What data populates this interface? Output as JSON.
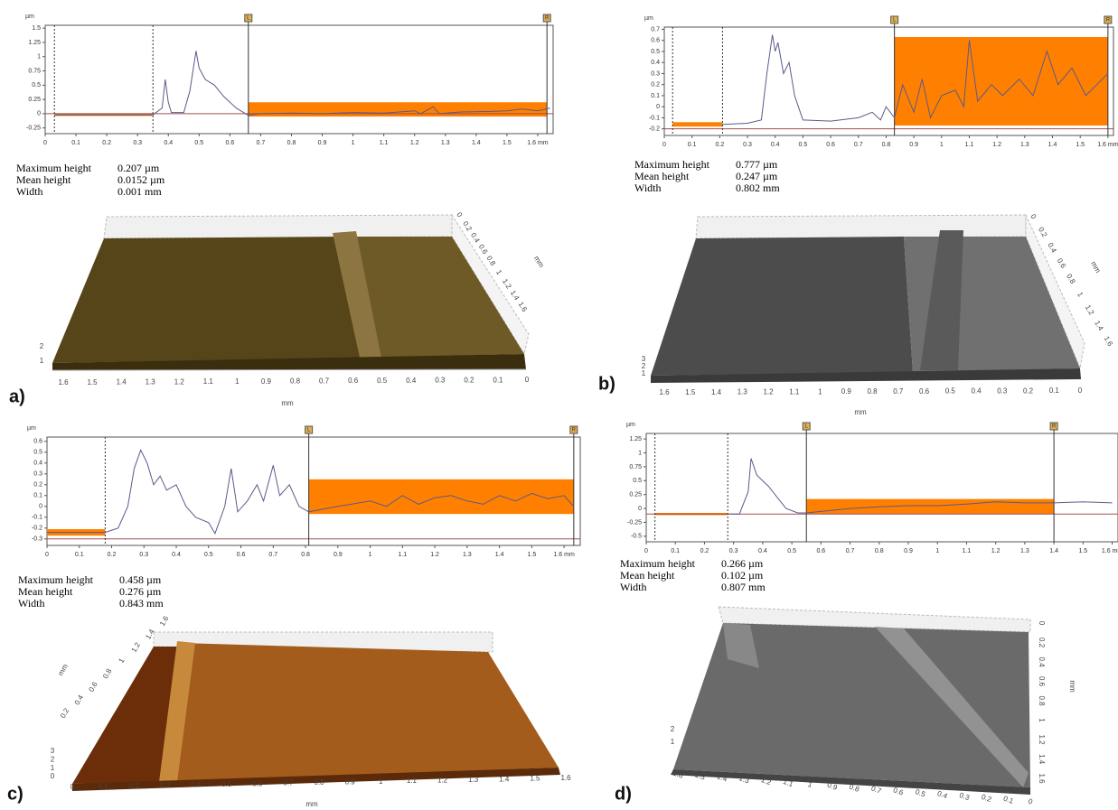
{
  "chart_data": [
    {
      "type": "line",
      "y_label": "µm",
      "x": [
        0.03,
        0.35,
        0.38,
        0.39,
        0.4,
        0.41,
        0.45,
        0.47,
        0.49,
        0.5,
        0.52,
        0.55,
        0.58,
        0.62,
        0.66,
        0.7,
        0.8,
        0.9,
        1.0,
        1.1,
        1.15,
        1.2,
        1.22,
        1.26,
        1.28,
        1.35,
        1.45,
        1.5,
        1.55,
        1.6,
        1.64
      ],
      "series": [
        {
          "color": "#5a5a8c",
          "values": [
            -0.02,
            -0.02,
            0.1,
            0.6,
            0.2,
            0.02,
            0.02,
            0.4,
            1.1,
            0.8,
            0.6,
            0.5,
            0.3,
            0.1,
            -0.03,
            0.0,
            0.01,
            0.0,
            0.02,
            0.01,
            0.03,
            0.05,
            0.0,
            0.12,
            0.0,
            0.03,
            0.04,
            0.05,
            0.08,
            0.05,
            0.1
          ]
        }
      ],
      "xlim": [
        0,
        1.65
      ],
      "ylim": [
        -0.35,
        1.55
      ],
      "xticks": [
        0,
        0.1,
        0.2,
        0.3,
        0.4,
        0.5,
        0.6,
        0.7,
        0.8,
        0.9,
        1,
        1.1,
        1.2,
        1.3,
        1.4,
        1.5,
        {
          "value": 1.6,
          "label": "1.6 mm"
        }
      ],
      "yticks": [
        1.5,
        1.25,
        1,
        0.75,
        0.5,
        0.25,
        0,
        -0.25
      ],
      "highlights": [
        {
          "x": [
            0.03,
            0.35
          ],
          "y": [
            -0.04,
            0.0
          ]
        },
        {
          "x": [
            0.66,
            1.63
          ],
          "y": [
            -0.05,
            0.2
          ]
        }
      ],
      "highlight_color": "#ff8000",
      "dashed_x": [
        0.03,
        0.35
      ],
      "cursors": [
        {
          "value": 0.66,
          "label": "L"
        },
        {
          "value": 1.63,
          "label": "R"
        }
      ],
      "reference_y": 0,
      "reference_color": "#a05050"
    },
    {
      "type": "line",
      "y_label": "µm",
      "x": [
        0.21,
        0.3,
        0.35,
        0.37,
        0.39,
        0.4,
        0.41,
        0.43,
        0.45,
        0.47,
        0.5,
        0.6,
        0.7,
        0.75,
        0.78,
        0.8,
        0.83,
        0.86,
        0.9,
        0.93,
        0.96,
        1.0,
        1.05,
        1.08,
        1.1,
        1.13,
        1.18,
        1.22,
        1.28,
        1.33,
        1.38,
        1.42,
        1.47,
        1.52,
        1.56,
        1.6
      ],
      "series": [
        {
          "color": "#5a5a8c",
          "values": [
            -0.16,
            -0.15,
            -0.12,
            0.3,
            0.65,
            0.5,
            0.58,
            0.3,
            0.4,
            0.1,
            -0.12,
            -0.13,
            -0.1,
            -0.05,
            -0.12,
            0.0,
            -0.1,
            0.2,
            -0.05,
            0.25,
            -0.1,
            0.1,
            0.15,
            0.0,
            0.6,
            0.05,
            0.2,
            0.1,
            0.25,
            0.1,
            0.5,
            0.2,
            0.35,
            0.1,
            0.2,
            0.3
          ]
        }
      ],
      "xlim": [
        0,
        1.62
      ],
      "ylim": [
        -0.26,
        0.72
      ],
      "xticks": [
        0,
        0.1,
        0.2,
        0.3,
        0.4,
        0.5,
        0.6,
        0.7,
        0.8,
        0.9,
        1,
        1.1,
        1.2,
        1.3,
        1.4,
        1.5,
        {
          "value": 1.6,
          "label": "1.6 mm"
        }
      ],
      "yticks": [
        0.7,
        0.6,
        0.5,
        0.4,
        0.3,
        0.2,
        0.1,
        0,
        -0.1,
        -0.2
      ],
      "highlights": [
        {
          "x": [
            0.03,
            0.21
          ],
          "y": [
            -0.18,
            -0.14
          ]
        },
        {
          "x": [
            0.83,
            1.6
          ],
          "y": [
            -0.17,
            0.63
          ]
        }
      ],
      "highlight_color": "#ff8000",
      "dashed_x": [
        0.03,
        0.21
      ],
      "cursors": [
        {
          "value": 0.83,
          "label": "L"
        },
        {
          "value": 1.6,
          "label": "R"
        }
      ],
      "reference_y": -0.2,
      "reference_color": "#a05050"
    },
    {
      "type": "line",
      "y_label": "µm",
      "x": [
        0,
        0.18,
        0.22,
        0.25,
        0.27,
        0.29,
        0.31,
        0.33,
        0.35,
        0.37,
        0.4,
        0.43,
        0.46,
        0.5,
        0.52,
        0.55,
        0.57,
        0.59,
        0.62,
        0.65,
        0.67,
        0.7,
        0.72,
        0.75,
        0.78,
        0.81,
        0.9,
        1.0,
        1.05,
        1.1,
        1.15,
        1.2,
        1.25,
        1.3,
        1.35,
        1.4,
        1.45,
        1.5,
        1.55,
        1.6,
        1.63
      ],
      "series": [
        {
          "color": "#5a5a8c",
          "values": [
            -0.24,
            -0.24,
            -0.2,
            0.0,
            0.35,
            0.52,
            0.4,
            0.2,
            0.28,
            0.15,
            0.2,
            0.0,
            -0.1,
            -0.15,
            -0.25,
            0.0,
            0.35,
            -0.05,
            0.05,
            0.2,
            0.05,
            0.38,
            0.1,
            0.2,
            0.0,
            -0.05,
            0.0,
            0.05,
            0.0,
            0.1,
            0.02,
            0.08,
            0.1,
            0.05,
            0.02,
            0.1,
            0.05,
            0.12,
            0.07,
            0.1,
            0.0
          ]
        }
      ],
      "xlim": [
        0,
        1.65
      ],
      "ylim": [
        -0.36,
        0.64
      ],
      "xticks": [
        0,
        0.1,
        0.2,
        0.3,
        0.4,
        0.5,
        0.6,
        0.7,
        0.8,
        0.9,
        1,
        1.1,
        1.2,
        1.3,
        1.4,
        1.5,
        {
          "value": 1.6,
          "label": "1.6 mm"
        }
      ],
      "yticks": [
        0.6,
        0.5,
        0.4,
        0.3,
        0.2,
        0.1,
        0,
        -0.1,
        -0.2,
        -0.3
      ],
      "highlights": [
        {
          "x": [
            0,
            0.18
          ],
          "y": [
            -0.27,
            -0.21
          ]
        },
        {
          "x": [
            0.81,
            1.63
          ],
          "y": [
            -0.07,
            0.25
          ]
        }
      ],
      "highlight_color": "#ff8000",
      "dashed_x": [
        0.18
      ],
      "cursors": [
        {
          "value": 0.81,
          "label": "L"
        },
        {
          "value": 1.63,
          "label": "R"
        }
      ],
      "reference_y": -0.3,
      "reference_color": "#a05050"
    },
    {
      "type": "line",
      "y_label": "µm",
      "x": [
        0.28,
        0.32,
        0.35,
        0.36,
        0.38,
        0.42,
        0.45,
        0.48,
        0.52,
        0.55,
        0.7,
        0.8,
        0.9,
        1.0,
        1.1,
        1.2,
        1.3,
        1.4,
        1.5,
        1.6
      ],
      "series": [
        {
          "color": "#5a5a8c",
          "values": [
            -0.1,
            -0.1,
            0.3,
            0.9,
            0.6,
            0.4,
            0.2,
            0.0,
            -0.08,
            -0.08,
            0.0,
            0.03,
            0.05,
            0.05,
            0.08,
            0.12,
            0.1,
            0.1,
            0.12,
            0.1
          ]
        }
      ],
      "xlim": [
        0,
        1.62
      ],
      "ylim": [
        -0.6,
        1.35
      ],
      "xticks": [
        0,
        0.1,
        0.2,
        0.3,
        0.4,
        0.5,
        0.6,
        0.7,
        0.8,
        0.9,
        1,
        1.1,
        1.2,
        1.3,
        1.4,
        1.5,
        {
          "value": 1.6,
          "label": "1.6 mm"
        }
      ],
      "yticks": [
        1.25,
        1,
        0.75,
        0.5,
        0.25,
        0,
        -0.25,
        -0.5
      ],
      "highlights": [
        {
          "x": [
            0.03,
            0.28
          ],
          "y": [
            -0.12,
            -0.08
          ]
        },
        {
          "x": [
            0.55,
            1.4
          ],
          "y": [
            -0.1,
            0.17
          ]
        }
      ],
      "highlight_color": "#ff8000",
      "dashed_x": [
        0.03,
        0.28
      ],
      "cursors": [
        {
          "value": 0.55,
          "label": "L"
        },
        {
          "value": 1.4,
          "label": "R"
        }
      ],
      "reference_y": -0.1,
      "reference_color": "#a05050"
    }
  ],
  "panels": [
    {
      "label": "a)",
      "stats": [
        {
          "name": "Maximum height",
          "value": "0.207 µm"
        },
        {
          "name": "Mean height",
          "value": "0.0152 µm"
        },
        {
          "name": "Width",
          "value": "0.001 mm"
        }
      ],
      "surface": {
        "x_ticks": [
          "1.6",
          "1.5",
          "1.4",
          "1.3",
          "1.2",
          "1.1",
          "1",
          "0.9",
          "0.8",
          "0.7",
          "0.6",
          "0.5",
          "0.4",
          "0.3",
          "0.2",
          "0.1",
          "0"
        ],
        "x_unit": "mm",
        "y_ticks": [
          "0",
          "0.2",
          "0.4",
          "0.6",
          "0.8",
          "1",
          "1.2",
          "1.4",
          "1.6"
        ],
        "y_unit": "mm",
        "z_ticks": [
          "2",
          "1"
        ]
      }
    },
    {
      "label": "b)",
      "stats": [
        {
          "name": "Maximum height",
          "value": "0.777 µm"
        },
        {
          "name": "Mean height",
          "value": "0.247 µm"
        },
        {
          "name": "Width",
          "value": "0.802 mm"
        }
      ],
      "surface": {
        "x_ticks": [
          "1.6",
          "1.5",
          "1.4",
          "1.3",
          "1.2",
          "1.1",
          "1",
          "0.9",
          "0.8",
          "0.7",
          "0.6",
          "0.5",
          "0.4",
          "0.3",
          "0.2",
          "0.1",
          "0"
        ],
        "x_unit": "mm",
        "y_ticks": [
          "0",
          "0.2",
          "0.4",
          "0.6",
          "0.8",
          "1",
          "1.2",
          "1.4",
          "1.6"
        ],
        "y_unit": "mm",
        "z_ticks": [
          "3",
          "2",
          "1"
        ]
      }
    },
    {
      "label": "c)",
      "stats": [
        {
          "name": "Maximum height",
          "value": "0.458 µm"
        },
        {
          "name": "Mean height",
          "value": "0.276 µm"
        },
        {
          "name": "Width",
          "value": "0.843 mm"
        }
      ],
      "surface": {
        "x_ticks": [
          "0",
          "0.1",
          "0.2",
          "0.3",
          "0.4",
          "0.5",
          "0.6",
          "0.7",
          "0.8",
          "0.9",
          "1",
          "1.1",
          "1.2",
          "1.3",
          "1.4",
          "1.5",
          "1.6"
        ],
        "x_unit": "mm",
        "y_ticks": [
          "0.2",
          "0.4",
          "0.6",
          "0.8",
          "1",
          "1.2",
          "1.4",
          "1.6"
        ],
        "y_unit": "mm",
        "z_ticks": [
          "3",
          "2",
          "1",
          "0"
        ]
      }
    },
    {
      "label": "d)",
      "stats": [
        {
          "name": "Maximum height",
          "value": "0.266 µm"
        },
        {
          "name": "Mean height",
          "value": "0.102 µm"
        },
        {
          "name": "Width",
          "value": "0.807 mm"
        }
      ],
      "surface": {
        "x_ticks": [
          "1.6",
          "1.5",
          "1.4",
          "1.3",
          "1.2",
          "1.1",
          "1",
          "0.9",
          "0.8",
          "0.7",
          "0.6",
          "0.5",
          "0.4",
          "0.3",
          "0.2",
          "0.1",
          "0"
        ],
        "y_ticks": [
          "0",
          "0.2",
          "0.4",
          "0.6",
          "0.8",
          "1",
          "1.2",
          "1.4",
          "1.6"
        ],
        "y_unit": "mm",
        "z_ticks": [
          "2",
          "1"
        ]
      }
    }
  ]
}
